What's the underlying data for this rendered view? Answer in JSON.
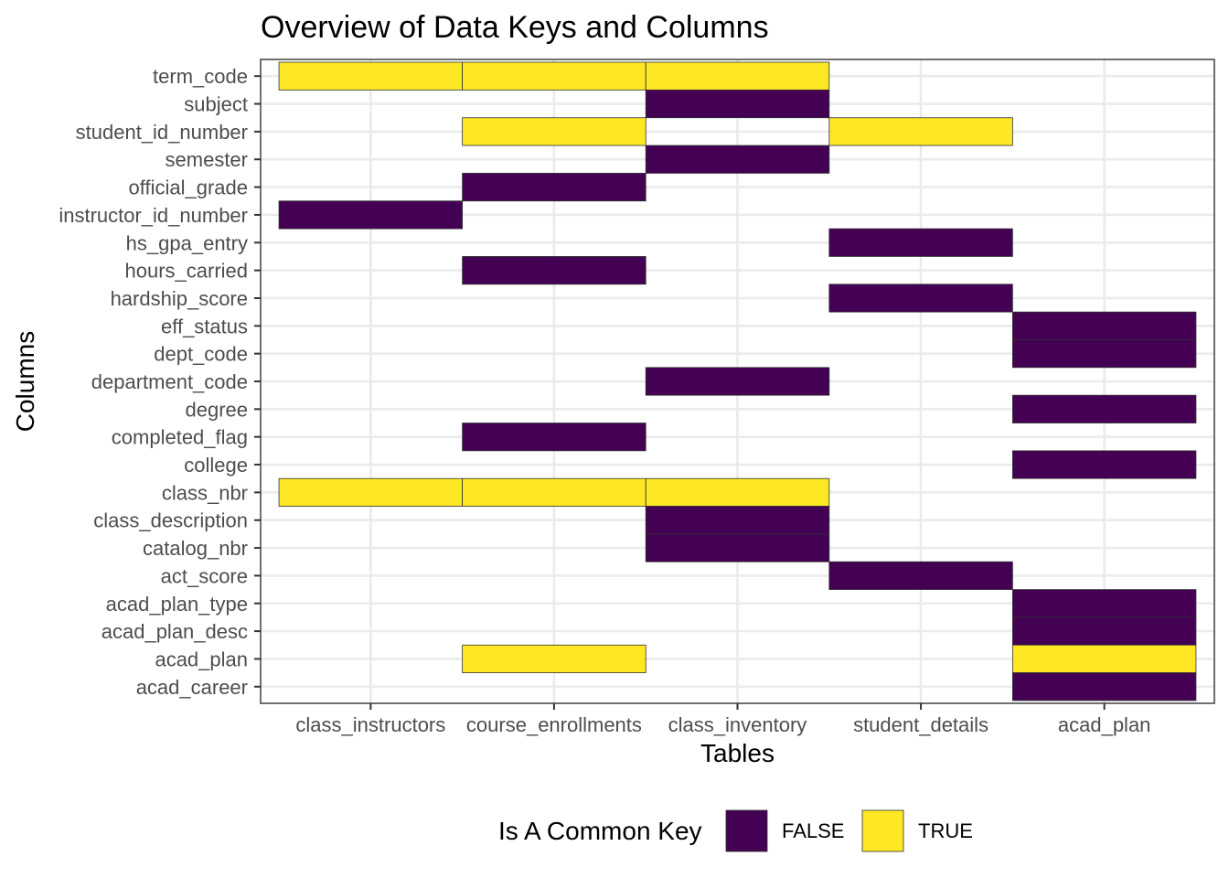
{
  "chart_data": {
    "type": "heatmap",
    "title": "Overview of Data Keys and Columns",
    "xlabel": "Tables",
    "ylabel": "Columns",
    "x_categories": [
      "class_instructors",
      "course_enrollments",
      "class_inventory",
      "student_details",
      "acad_plan"
    ],
    "y_categories": [
      "term_code",
      "subject",
      "student_id_number",
      "semester",
      "official_grade",
      "instructor_id_number",
      "hs_gpa_entry",
      "hours_carried",
      "hardship_score",
      "eff_status",
      "dept_code",
      "department_code",
      "degree",
      "completed_flag",
      "college",
      "class_nbr",
      "class_description",
      "catalog_nbr",
      "act_score",
      "acad_plan_type",
      "acad_plan_desc",
      "acad_plan",
      "acad_career"
    ],
    "cells": [
      {
        "table": "class_instructors",
        "column": "term_code",
        "common_key": "TRUE"
      },
      {
        "table": "course_enrollments",
        "column": "term_code",
        "common_key": "TRUE"
      },
      {
        "table": "class_inventory",
        "column": "term_code",
        "common_key": "TRUE"
      },
      {
        "table": "class_inventory",
        "column": "subject",
        "common_key": "FALSE"
      },
      {
        "table": "course_enrollments",
        "column": "student_id_number",
        "common_key": "TRUE"
      },
      {
        "table": "student_details",
        "column": "student_id_number",
        "common_key": "TRUE"
      },
      {
        "table": "class_inventory",
        "column": "semester",
        "common_key": "FALSE"
      },
      {
        "table": "course_enrollments",
        "column": "official_grade",
        "common_key": "FALSE"
      },
      {
        "table": "class_instructors",
        "column": "instructor_id_number",
        "common_key": "FALSE"
      },
      {
        "table": "student_details",
        "column": "hs_gpa_entry",
        "common_key": "FALSE"
      },
      {
        "table": "course_enrollments",
        "column": "hours_carried",
        "common_key": "FALSE"
      },
      {
        "table": "student_details",
        "column": "hardship_score",
        "common_key": "FALSE"
      },
      {
        "table": "acad_plan",
        "column": "eff_status",
        "common_key": "FALSE"
      },
      {
        "table": "acad_plan",
        "column": "dept_code",
        "common_key": "FALSE"
      },
      {
        "table": "class_inventory",
        "column": "department_code",
        "common_key": "FALSE"
      },
      {
        "table": "acad_plan",
        "column": "degree",
        "common_key": "FALSE"
      },
      {
        "table": "course_enrollments",
        "column": "completed_flag",
        "common_key": "FALSE"
      },
      {
        "table": "acad_plan",
        "column": "college",
        "common_key": "FALSE"
      },
      {
        "table": "class_instructors",
        "column": "class_nbr",
        "common_key": "TRUE"
      },
      {
        "table": "course_enrollments",
        "column": "class_nbr",
        "common_key": "TRUE"
      },
      {
        "table": "class_inventory",
        "column": "class_nbr",
        "common_key": "TRUE"
      },
      {
        "table": "class_inventory",
        "column": "class_description",
        "common_key": "FALSE"
      },
      {
        "table": "class_inventory",
        "column": "catalog_nbr",
        "common_key": "FALSE"
      },
      {
        "table": "student_details",
        "column": "act_score",
        "common_key": "FALSE"
      },
      {
        "table": "acad_plan",
        "column": "acad_plan_type",
        "common_key": "FALSE"
      },
      {
        "table": "acad_plan",
        "column": "acad_plan_desc",
        "common_key": "FALSE"
      },
      {
        "table": "course_enrollments",
        "column": "acad_plan",
        "common_key": "TRUE"
      },
      {
        "table": "acad_plan",
        "column": "acad_plan",
        "common_key": "TRUE"
      },
      {
        "table": "acad_plan",
        "column": "acad_career",
        "common_key": "FALSE"
      }
    ],
    "legend": {
      "title": "Is A Common Key",
      "position": "bottom",
      "entries": [
        {
          "label": "FALSE",
          "color": "#440154"
        },
        {
          "label": "TRUE",
          "color": "#FDE725"
        }
      ]
    },
    "grid": true
  }
}
